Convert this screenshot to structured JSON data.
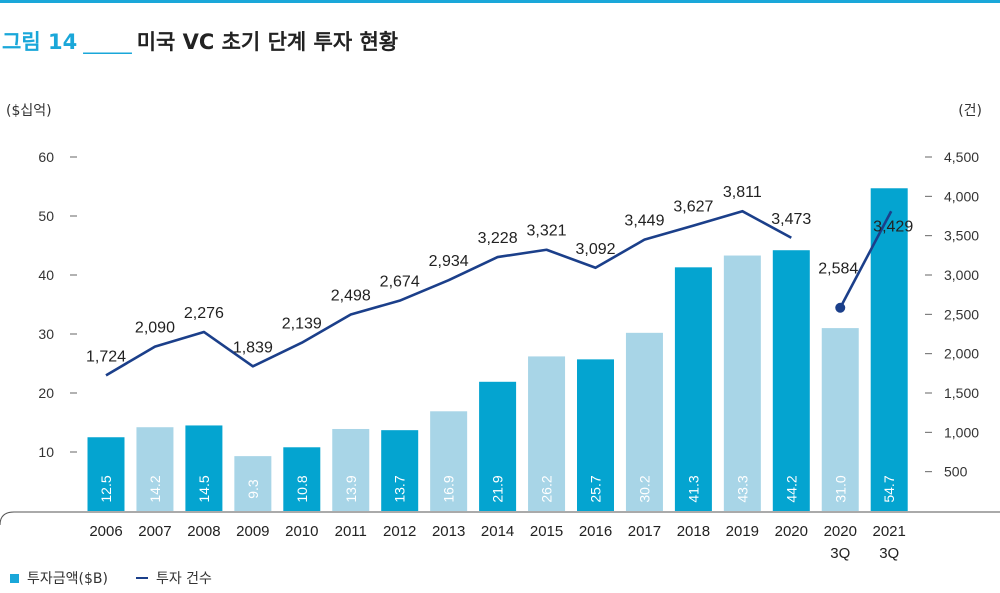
{
  "figure": {
    "number": "그림 14",
    "separator": "_____",
    "title": "미국 VC 초기 단계 투자 현황"
  },
  "units": {
    "left": "($십억)",
    "right": "(건)"
  },
  "legend": {
    "bar_label": "투자금액($B)",
    "line_label": "투자 건수"
  },
  "colors": {
    "bar_dark": "#04a4d0",
    "bar_light": "#a8d5e7",
    "line": "#1b3f8a",
    "accent": "#1aa7d9"
  },
  "chart_data": {
    "type": "bar",
    "categories": [
      "2006",
      "2007",
      "2008",
      "2009",
      "2010",
      "2011",
      "2012",
      "2013",
      "2014",
      "2015",
      "2016",
      "2017",
      "2018",
      "2019",
      "2020",
      "2020\n3Q",
      "2021\n3Q"
    ],
    "series": [
      {
        "name": "투자금액($B)",
        "type": "bar",
        "axis": "left",
        "values": [
          12.5,
          14.2,
          14.5,
          9.3,
          10.8,
          13.9,
          13.7,
          16.9,
          21.9,
          26.2,
          25.7,
          30.2,
          41.3,
          43.3,
          44.2,
          31.0,
          54.7
        ],
        "labels": [
          "12.5",
          "14.2",
          "14.5",
          "9.3",
          "10.8",
          "13.9",
          "13.7",
          "16.9",
          "21.9",
          "26.2",
          "25.7",
          "30.2",
          "41.3",
          "43.3",
          "44.2",
          "31.0",
          "54.7"
        ],
        "shade": [
          "dark",
          "light",
          "dark",
          "light",
          "dark",
          "light",
          "dark",
          "light",
          "dark",
          "light",
          "dark",
          "light",
          "dark",
          "light",
          "dark",
          "light",
          "dark"
        ]
      },
      {
        "name": "투자 건수",
        "type": "line",
        "axis": "right",
        "values": [
          1724,
          2090,
          2276,
          1839,
          2139,
          2498,
          2674,
          2934,
          3228,
          3321,
          3092,
          3449,
          3627,
          3811,
          3473,
          2584,
          3429
        ],
        "labels": [
          "1,724",
          "2,090",
          "2,276",
          "1,839",
          "2,139",
          "2,498",
          "2,674",
          "2,934",
          "3,228",
          "3,321",
          "3,092",
          "3,449",
          "3,627",
          "3,811",
          "3,473",
          "2,584",
          "3,429"
        ]
      }
    ],
    "y_left": {
      "ticks": [
        "10",
        "20",
        "30",
        "40",
        "50",
        "60"
      ],
      "tick_values": [
        10,
        20,
        30,
        40,
        50,
        60
      ],
      "ylim": [
        0,
        60
      ]
    },
    "y_right": {
      "ticks": [
        "500",
        "1,000",
        "1,500",
        "2,000",
        "2,500",
        "3,000",
        "3,500",
        "4,000",
        "4,500"
      ],
      "tick_values": [
        500,
        1000,
        1500,
        2000,
        2500,
        3000,
        3500,
        4000,
        4500
      ],
      "ylim": [
        0,
        4500
      ]
    },
    "grid": false,
    "legend_position": "bottom-left"
  }
}
